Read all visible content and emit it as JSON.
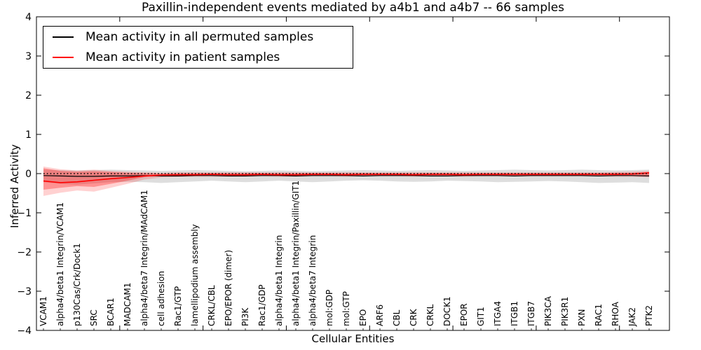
{
  "figure": {
    "title": "Paxillin-independent events mediated by a4b1 and a4b7 -- 66 samples",
    "xlabel": "Cellular Entities",
    "ylabel": "Inferred Activity",
    "legend": {
      "entries": [
        {
          "label": "Mean activity in all permuted samples",
          "color": "#000000"
        },
        {
          "label": "Mean activity in patient samples",
          "color": "#ff0000"
        }
      ]
    }
  },
  "chart_data": {
    "type": "line",
    "title": "Paxillin-independent events mediated by a4b1 and a4b7 -- 66 samples",
    "xlabel": "Cellular Entities",
    "ylabel": "Inferred Activity",
    "ylim": [
      -4,
      4
    ],
    "xlim": [
      0,
      38
    ],
    "grid": false,
    "legend_position": "upper left",
    "ytick_values": [
      4,
      3,
      2,
      1,
      0,
      -1,
      -2,
      -3,
      -4
    ],
    "ytick_labels": [
      "4",
      "3",
      "2",
      "1",
      "0",
      "−1",
      "−2",
      "−3",
      "−4"
    ],
    "xtick_values": [
      5,
      10,
      15,
      20,
      25,
      30,
      35
    ],
    "categories": [
      "VCAM1",
      "alpha4/beta1 Integrin/VCAM1",
      "p130Cas/Crk/Dock1",
      "SRC",
      "BCAR1",
      "MADCAM1",
      "alpha4/beta7 Integrin/MAdCAM1",
      "cell adhesion",
      "Rac1/GTP",
      "lamellipodium assembly",
      "CRKL/CBL",
      "EPO/EPOR (dimer)",
      "PI3K",
      "Rac1/GDP",
      "alpha4/beta1 Integrin",
      "alpha4/beta1 Integrin/Paxillin/GIT1",
      "alpha4/beta7 Integrin",
      "mol:GDP",
      "mol:GTP",
      "EPO",
      "ARF6",
      "CBL",
      "CRK",
      "CRKL",
      "DOCK1",
      "EPOR",
      "GIT1",
      "ITGA4",
      "ITGB1",
      "ITGB7",
      "PIK3CA",
      "PIK3R1",
      "PXN",
      "RAC1",
      "RHOA",
      "JAK2",
      "PTK2"
    ],
    "series": [
      {
        "name": "Mean activity in all permuted samples",
        "color": "#000000",
        "style": "solid",
        "width": 1.2,
        "values": [
          -0.05,
          -0.06,
          -0.07,
          -0.07,
          -0.06,
          -0.06,
          -0.05,
          -0.06,
          -0.06,
          -0.05,
          -0.05,
          -0.06,
          -0.06,
          -0.05,
          -0.05,
          -0.06,
          -0.05,
          -0.05,
          -0.05,
          -0.06,
          -0.05,
          -0.05,
          -0.05,
          -0.06,
          -0.06,
          -0.05,
          -0.05,
          -0.05,
          -0.06,
          -0.05,
          -0.05,
          -0.05,
          -0.05,
          -0.06,
          -0.05,
          -0.05,
          -0.06
        ]
      },
      {
        "name": "Mean activity in patient samples",
        "color": "#ff0000",
        "style": "solid",
        "width": 1.6,
        "values": [
          -0.19,
          -0.23,
          -0.21,
          -0.17,
          -0.13,
          -0.1,
          -0.06,
          -0.04,
          -0.03,
          -0.03,
          -0.02,
          -0.03,
          -0.03,
          -0.02,
          -0.03,
          -0.03,
          -0.02,
          -0.02,
          -0.03,
          -0.02,
          -0.02,
          -0.02,
          -0.03,
          -0.02,
          -0.02,
          -0.03,
          -0.02,
          -0.02,
          -0.02,
          -0.02,
          -0.02,
          -0.02,
          -0.02,
          -0.02,
          -0.02,
          -0.01,
          0.02
        ]
      },
      {
        "name": "zero reference (dotted)",
        "color": "#000000",
        "style": "dotted",
        "width": 1.4,
        "values": 0
      }
    ],
    "bands": [
      {
        "name": "permuted samples range",
        "color": "rgba(0,0,0,0.13)",
        "upper": [
          0.1,
          0.09,
          0.08,
          0.09,
          0.1,
          0.09,
          0.08,
          0.07,
          0.08,
          0.09,
          0.08,
          0.07,
          0.06,
          0.07,
          0.08,
          0.07,
          0.06,
          0.07,
          0.08,
          0.09,
          0.08,
          0.07,
          0.08,
          0.09,
          0.08,
          0.07,
          0.08,
          0.09,
          0.1,
          0.09,
          0.08,
          0.09,
          0.1,
          0.09,
          0.08,
          0.09,
          0.1
        ],
        "lower": [
          -0.22,
          -0.26,
          -0.28,
          -0.25,
          -0.22,
          -0.21,
          -0.22,
          -0.24,
          -0.22,
          -0.2,
          -0.18,
          -0.2,
          -0.22,
          -0.2,
          -0.18,
          -0.2,
          -0.22,
          -0.2,
          -0.18,
          -0.17,
          -0.18,
          -0.2,
          -0.21,
          -0.2,
          -0.18,
          -0.19,
          -0.2,
          -0.22,
          -0.21,
          -0.2,
          -0.19,
          -0.2,
          -0.22,
          -0.24,
          -0.23,
          -0.22,
          -0.24
        ]
      },
      {
        "name": "patient samples range (outer)",
        "color": "rgba(255,0,0,0.18)",
        "upper": [
          0.18,
          0.11,
          0.08,
          0.1,
          0.07,
          0.05,
          0.03,
          0.02,
          0.03,
          0.03,
          0.03,
          0.03,
          0.03,
          0.03,
          0.03,
          0.03,
          0.03,
          0.03,
          0.03,
          0.03,
          0.03,
          0.03,
          0.03,
          0.03,
          0.03,
          0.03,
          0.03,
          0.03,
          0.03,
          0.03,
          0.03,
          0.03,
          0.03,
          0.03,
          0.04,
          0.05,
          0.07
        ],
        "lower": [
          -0.57,
          -0.49,
          -0.43,
          -0.46,
          -0.36,
          -0.26,
          -0.15,
          -0.1,
          -0.09,
          -0.08,
          -0.08,
          -0.08,
          -0.08,
          -0.07,
          -0.08,
          -0.08,
          -0.07,
          -0.07,
          -0.08,
          -0.07,
          -0.07,
          -0.07,
          -0.08,
          -0.07,
          -0.07,
          -0.08,
          -0.07,
          -0.07,
          -0.07,
          -0.07,
          -0.07,
          -0.07,
          -0.07,
          -0.07,
          -0.08,
          -0.08,
          -0.1
        ]
      },
      {
        "name": "patient samples range (inner)",
        "color": "rgba(255,0,0,0.30)",
        "upper": [
          0.14,
          0.07,
          0.05,
          0.06,
          0.04,
          0.02,
          0.01,
          0.0,
          0.01,
          0.01,
          0.01,
          0.01,
          0.01,
          0.01,
          0.01,
          0.01,
          0.01,
          0.01,
          0.01,
          0.01,
          0.01,
          0.01,
          0.01,
          0.01,
          0.01,
          0.01,
          0.01,
          0.01,
          0.01,
          0.01,
          0.01,
          0.01,
          0.01,
          0.01,
          0.02,
          0.02,
          0.04
        ],
        "lower": [
          -0.41,
          -0.36,
          -0.32,
          -0.34,
          -0.26,
          -0.18,
          -0.09,
          -0.06,
          -0.05,
          -0.05,
          -0.05,
          -0.05,
          -0.05,
          -0.05,
          -0.05,
          -0.05,
          -0.05,
          -0.05,
          -0.05,
          -0.05,
          -0.05,
          -0.05,
          -0.05,
          -0.05,
          -0.05,
          -0.05,
          -0.05,
          -0.05,
          -0.05,
          -0.05,
          -0.05,
          -0.05,
          -0.05,
          -0.05,
          -0.05,
          -0.06,
          -0.07
        ]
      }
    ]
  }
}
